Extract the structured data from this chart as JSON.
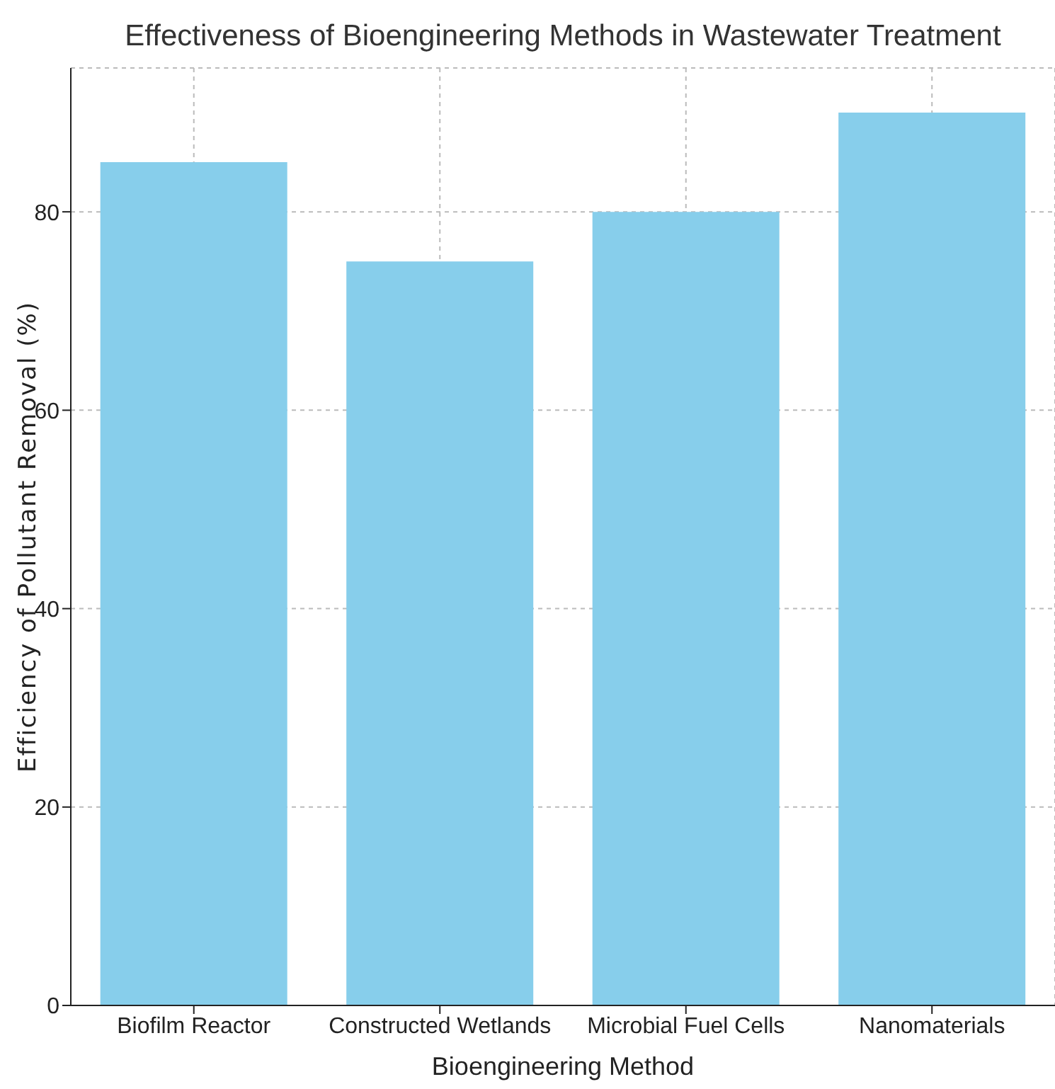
{
  "chart_data": {
    "type": "bar",
    "title": "Effectiveness of Bioengineering Methods in Wastewater Treatment",
    "xlabel": "Bioengineering Method",
    "ylabel": "Efficiency of Pollutant Removal (%)",
    "categories": [
      "Biofilm Reactor",
      "Constructed Wetlands",
      "Microbial Fuel Cells",
      "Nanomaterials"
    ],
    "values": [
      85,
      75,
      80,
      90
    ],
    "color": "#87ceeb",
    "ylim": [
      0,
      94.5
    ],
    "yticks": [
      0,
      20,
      40,
      60,
      80
    ],
    "grid": true
  }
}
